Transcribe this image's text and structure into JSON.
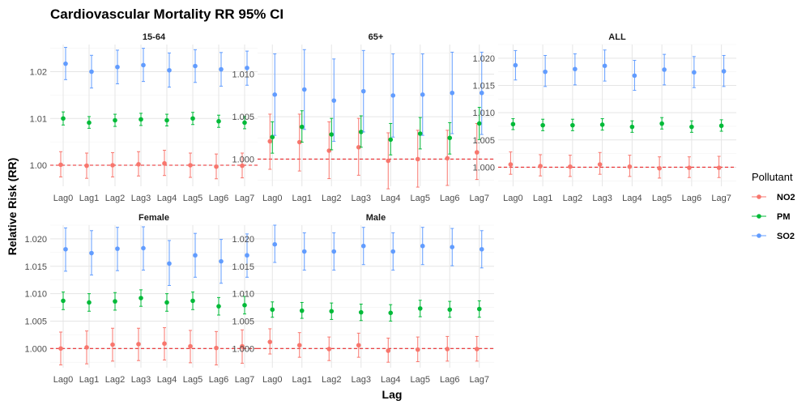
{
  "chart_data": {
    "type": "scatter",
    "title": "Cardiovascular Mortality RR 95% CI",
    "xlabel": "Lag",
    "ylabel": "Relative Risk (RR)",
    "categories": [
      "Lag0",
      "Lag1",
      "Lag2",
      "Lag3",
      "Lag4",
      "Lag5",
      "Lag6",
      "Lag7"
    ],
    "reference_line": 1.0,
    "grid": true,
    "legend": {
      "title": "Pollutant",
      "placement": "right",
      "entries": [
        {
          "name": "NO2",
          "color": "#F8766D"
        },
        {
          "name": "PM",
          "color": "#00BA38"
        },
        {
          "name": "SO2",
          "color": "#619CFF"
        }
      ]
    },
    "panels": [
      {
        "name": "15-64",
        "ylim": [
          0.9955,
          1.0258
        ],
        "yticks": [
          1.0,
          1.01,
          1.02
        ],
        "ytick_labels": [
          "1.00",
          "1.01",
          "1.02"
        ],
        "series": [
          {
            "name": "NO2",
            "est": [
              1.0001,
              0.9999,
              1.0,
              1.0002,
              1.0004,
              1.0,
              0.9997,
              0.9999
            ],
            "lo": [
              0.9975,
              0.9972,
              0.9975,
              0.9977,
              0.9978,
              0.9974,
              0.9971,
              0.9973
            ],
            "hi": [
              1.0029,
              1.0026,
              1.0027,
              1.0029,
              1.0032,
              1.0026,
              1.0024,
              1.0026
            ]
          },
          {
            "name": "PM",
            "est": [
              1.01,
              1.0091,
              1.0096,
              1.0098,
              1.0096,
              1.01,
              1.0094,
              1.0091
            ],
            "lo": [
              1.0086,
              1.0079,
              1.0083,
              1.0085,
              1.0084,
              1.0087,
              1.0081,
              1.0078
            ],
            "hi": [
              1.0114,
              1.0104,
              1.0109,
              1.0111,
              1.0109,
              1.0113,
              1.0107,
              1.0104
            ]
          },
          {
            "name": "SO2",
            "est": [
              1.0217,
              1.02,
              1.021,
              1.0214,
              1.0203,
              1.0212,
              1.0205,
              1.0208
            ],
            "lo": [
              1.0183,
              1.0165,
              1.0174,
              1.0179,
              1.0167,
              1.0177,
              1.0169,
              1.0171
            ],
            "hi": [
              1.0252,
              1.0235,
              1.0246,
              1.025,
              1.024,
              1.0247,
              1.0241,
              1.0244
            ]
          }
        ]
      },
      {
        "name": "65+",
        "ylim": [
          0.9968,
          1.0135
        ],
        "yticks": [
          1.0,
          1.005,
          1.01
        ],
        "ytick_labels": [
          "1.000",
          "1.005",
          "1.010"
        ],
        "series": [
          {
            "name": "NO2",
            "est": [
              1.0021,
              1.002,
              1.001,
              1.0014,
              0.9998,
              1.0,
              1.0001,
              1.0008
            ],
            "lo": [
              0.9988,
              0.9986,
              0.9977,
              0.9981,
              0.9965,
              0.9967,
              0.9969,
              0.9976
            ],
            "hi": [
              1.0053,
              1.0053,
              1.0044,
              1.0048,
              1.0031,
              1.0034,
              1.0034,
              1.0042
            ]
          },
          {
            "name": "PM",
            "est": [
              1.0026,
              1.0038,
              1.0029,
              1.0032,
              1.0023,
              1.003,
              1.0025,
              1.0042
            ],
            "lo": [
              1.0007,
              1.002,
              1.0011,
              1.0014,
              1.0005,
              1.0012,
              1.0006,
              1.0023
            ],
            "hi": [
              1.0044,
              1.0057,
              1.0048,
              1.0051,
              1.0042,
              1.0049,
              1.0043,
              1.0061
            ]
          },
          {
            "name": "SO2",
            "est": [
              1.0076,
              1.0082,
              1.0069,
              1.008,
              1.0075,
              1.0076,
              1.0078,
              1.0078
            ],
            "lo": [
              1.0028,
              1.0035,
              1.0021,
              1.0032,
              1.0026,
              1.0028,
              1.003,
              1.0029
            ],
            "hi": [
              1.0124,
              1.0129,
              1.0118,
              1.0128,
              1.0124,
              1.0124,
              1.0126,
              1.0126
            ]
          }
        ]
      },
      {
        "name": "ALL",
        "ylim": [
          0.9965,
          1.0225
        ],
        "yticks": [
          1.0,
          1.005,
          1.01,
          1.015,
          1.02
        ],
        "ytick_labels": [
          "1.000",
          "1.005",
          "1.010",
          "1.015",
          "1.020"
        ],
        "series": [
          {
            "name": "NO2",
            "est": [
              1.0005,
              1.0002,
              1.0001,
              1.0005,
              1.0001,
              0.9998,
              0.9999,
              0.9999
            ],
            "lo": [
              0.9987,
              0.9984,
              0.9983,
              0.9987,
              0.9983,
              0.998,
              0.9981,
              0.9981
            ],
            "hi": [
              1.0028,
              1.0023,
              1.0022,
              1.0027,
              1.0022,
              1.0019,
              1.0019,
              1.002
            ]
          },
          {
            "name": "PM",
            "est": [
              1.0079,
              1.0077,
              1.0077,
              1.0078,
              1.0074,
              1.008,
              1.0074,
              1.0076
            ],
            "lo": [
              1.0069,
              1.0067,
              1.0067,
              1.0068,
              1.0064,
              1.007,
              1.0064,
              1.0066
            ],
            "hi": [
              1.0089,
              1.0088,
              1.0088,
              1.0089,
              1.0085,
              1.0091,
              1.0085,
              1.0087
            ]
          },
          {
            "name": "SO2",
            "est": [
              1.0187,
              1.0175,
              1.018,
              1.0186,
              1.0168,
              1.0179,
              1.0174,
              1.0176
            ],
            "lo": [
              1.016,
              1.0148,
              1.0151,
              1.0158,
              1.0141,
              1.0151,
              1.0146,
              1.0148
            ],
            "hi": [
              1.0214,
              1.0205,
              1.0208,
              1.0215,
              1.0196,
              1.0207,
              1.0203,
              1.0205
            ]
          }
        ]
      },
      {
        "name": "Female",
        "ylim": [
          0.9965,
          1.0225
        ],
        "yticks": [
          1.0,
          1.005,
          1.01,
          1.015,
          1.02
        ],
        "ytick_labels": [
          "1.000",
          "1.005",
          "1.010",
          "1.015",
          "1.020"
        ],
        "series": [
          {
            "name": "NO2",
            "est": [
              1.0,
              1.0002,
              1.0007,
              1.0008,
              1.0009,
              1.0004,
              1.0001,
              1.0004
            ],
            "lo": [
              0.997,
              0.9972,
              0.9977,
              0.9978,
              0.9979,
              0.9974,
              0.997,
              0.9973
            ],
            "hi": [
              1.003,
              1.0032,
              1.0037,
              1.0037,
              1.0038,
              1.0033,
              1.0031,
              1.0034
            ]
          },
          {
            "name": "PM",
            "est": [
              1.0087,
              1.0084,
              1.0086,
              1.0092,
              1.0084,
              1.0087,
              1.0077,
              1.0079
            ],
            "lo": [
              1.0071,
              1.0068,
              1.007,
              1.0077,
              1.0068,
              1.0071,
              1.0061,
              1.0063
            ],
            "hi": [
              1.0103,
              1.01,
              1.0102,
              1.0107,
              1.01,
              1.0103,
              1.0093,
              1.0095
            ]
          },
          {
            "name": "SO2",
            "est": [
              1.0181,
              1.0174,
              1.0182,
              1.0183,
              1.0155,
              1.017,
              1.0159,
              1.017
            ],
            "lo": [
              1.0141,
              1.0134,
              1.0142,
              1.0143,
              1.0115,
              1.013,
              1.0119,
              1.013
            ],
            "hi": [
              1.022,
              1.0215,
              1.0221,
              1.0222,
              1.0197,
              1.021,
              1.0199,
              1.0209
            ]
          }
        ]
      },
      {
        "name": "Male",
        "ylim": [
          0.9965,
          1.0225
        ],
        "yticks": [
          1.0,
          1.005,
          1.01,
          1.015,
          1.02
        ],
        "ytick_labels": [
          "1.000",
          "1.005",
          "1.010",
          "1.015",
          "1.020"
        ],
        "series": [
          {
            "name": "NO2",
            "est": [
              1.0012,
              1.0006,
              0.9999,
              1.0006,
              0.9996,
              0.9998,
              0.9999,
              0.9999
            ],
            "lo": [
              0.999,
              0.9984,
              0.9978,
              0.9984,
              0.9975,
              0.9976,
              0.9977,
              0.9977
            ],
            "hi": [
              1.0036,
              1.0029,
              1.0021,
              1.0028,
              1.0019,
              1.0021,
              1.0022,
              1.0022
            ]
          },
          {
            "name": "PM",
            "est": [
              1.0071,
              1.0069,
              1.0068,
              1.0066,
              1.0065,
              1.0073,
              1.0071,
              1.0072
            ],
            "lo": [
              1.0057,
              1.0055,
              1.0053,
              1.0051,
              1.005,
              1.0058,
              1.0057,
              1.0057
            ],
            "hi": [
              1.0085,
              1.0084,
              1.0083,
              1.0081,
              1.008,
              1.0088,
              1.0086,
              1.0087
            ]
          },
          {
            "name": "SO2",
            "est": [
              1.019,
              1.0177,
              1.0177,
              1.0187,
              1.0177,
              1.0187,
              1.0185,
              1.0181
            ],
            "lo": [
              1.0157,
              1.0143,
              1.0143,
              1.0153,
              1.0143,
              1.0153,
              1.0151,
              1.0147
            ],
            "hi": [
              1.0225,
              1.0211,
              1.0211,
              1.0221,
              1.0211,
              1.0221,
              1.0219,
              1.0215
            ]
          }
        ]
      }
    ]
  }
}
